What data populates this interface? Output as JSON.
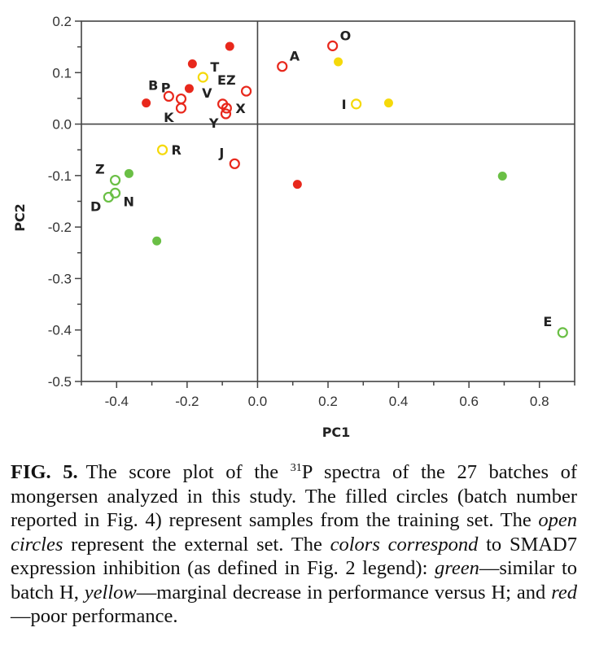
{
  "chart_data": {
    "type": "scatter",
    "title": "",
    "xlabel": "PC1",
    "ylabel": "PC2",
    "xlim": [
      -0.5,
      0.9
    ],
    "ylim": [
      -0.5,
      0.2
    ],
    "xticks": [
      -0.4,
      -0.2,
      0.0,
      0.2,
      0.4,
      0.6,
      0.8
    ],
    "xtick_labels": [
      "-0.4",
      "-0.2",
      "0.0",
      "0.2",
      "0.4",
      "0.6",
      "0.8"
    ],
    "xminor": [
      -0.5,
      -0.3,
      -0.1,
      0.1,
      0.3,
      0.5,
      0.7,
      0.9
    ],
    "yticks": [
      0.2,
      0.1,
      0.0,
      -0.1,
      -0.2,
      -0.3,
      -0.4,
      -0.5
    ],
    "ytick_labels": [
      "0.2",
      "0.1",
      "0.0",
      "-0.1",
      "-0.2",
      "-0.3",
      "-0.4",
      "-0.5"
    ],
    "yminor": [
      0.15,
      0.05,
      -0.05,
      -0.15,
      -0.25,
      -0.35,
      -0.45
    ],
    "zero_lines": true,
    "grid": false,
    "legend": "none",
    "colors": {
      "green": "#6abf45",
      "yellow": "#f5d90a",
      "red": "#e8281c"
    },
    "points": [
      {
        "label": "",
        "x": -0.316,
        "y": 0.041,
        "color": "red",
        "filled": true
      },
      {
        "label": "B",
        "x": -0.252,
        "y": 0.054,
        "color": "red",
        "filled": false,
        "label_pos": "upper-left"
      },
      {
        "label": "P",
        "x": -0.217,
        "y": 0.049,
        "color": "red",
        "filled": false,
        "label_pos": "upper-left"
      },
      {
        "label": "K",
        "x": -0.217,
        "y": 0.031,
        "color": "red",
        "filled": false,
        "label_pos": "lower-left"
      },
      {
        "label": "",
        "x": -0.194,
        "y": 0.069,
        "color": "red",
        "filled": true
      },
      {
        "label": "",
        "x": -0.185,
        "y": 0.117,
        "color": "red",
        "filled": true
      },
      {
        "label": "T",
        "x": -0.155,
        "y": 0.091,
        "color": "yellow",
        "filled": false,
        "label_pos": "upper-right"
      },
      {
        "label": "",
        "x": -0.079,
        "y": 0.151,
        "color": "red",
        "filled": true
      },
      {
        "label": "EZ",
        "x": -0.032,
        "y": 0.064,
        "color": "red",
        "filled": false,
        "label_pos": "upper-left"
      },
      {
        "label": "V",
        "x": -0.099,
        "y": 0.039,
        "color": "red",
        "filled": false,
        "label_pos": "upper-left"
      },
      {
        "label": "X",
        "x": -0.088,
        "y": 0.031,
        "color": "red",
        "filled": false,
        "label_pos": "right"
      },
      {
        "label": "Y",
        "x": -0.09,
        "y": 0.02,
        "color": "red",
        "filled": false,
        "label_pos": "lower-left"
      },
      {
        "label": "A",
        "x": 0.07,
        "y": 0.112,
        "color": "red",
        "filled": false,
        "label_pos": "upper-right"
      },
      {
        "label": "O",
        "x": 0.213,
        "y": 0.152,
        "color": "red",
        "filled": false,
        "label_pos": "upper-right"
      },
      {
        "label": "",
        "x": 0.229,
        "y": 0.121,
        "color": "yellow",
        "filled": true
      },
      {
        "label": "I",
        "x": 0.28,
        "y": 0.039,
        "color": "yellow",
        "filled": false,
        "label_pos": "left"
      },
      {
        "label": "",
        "x": 0.372,
        "y": 0.041,
        "color": "yellow",
        "filled": true
      },
      {
        "label": "R",
        "x": -0.27,
        "y": -0.05,
        "color": "yellow",
        "filled": false,
        "label_pos": "right"
      },
      {
        "label": "J",
        "x": -0.065,
        "y": -0.077,
        "color": "red",
        "filled": false,
        "label_pos": "upper-left"
      },
      {
        "label": "Z",
        "x": -0.404,
        "y": -0.109,
        "color": "green",
        "filled": false,
        "label_pos": "upper-left"
      },
      {
        "label": "",
        "x": -0.365,
        "y": -0.096,
        "color": "green",
        "filled": true
      },
      {
        "label": "N",
        "x": -0.404,
        "y": -0.134,
        "color": "green",
        "filled": false,
        "label_pos": "lower-right"
      },
      {
        "label": "D",
        "x": -0.423,
        "y": -0.142,
        "color": "green",
        "filled": false,
        "label_pos": "lower-left"
      },
      {
        "label": "",
        "x": -0.286,
        "y": -0.227,
        "color": "green",
        "filled": true
      },
      {
        "label": "",
        "x": 0.113,
        "y": -0.117,
        "color": "red",
        "filled": true
      },
      {
        "label": "",
        "x": 0.695,
        "y": -0.101,
        "color": "green",
        "filled": true
      },
      {
        "label": "E",
        "x": 0.866,
        "y": -0.405,
        "color": "green",
        "filled": false,
        "label_pos": "upper-left"
      }
    ]
  },
  "caption": {
    "fig_label": "FIG. 5.",
    "text_1": "The score plot of the ",
    "superscript": "31",
    "text_2": "P spectra of the 27 batches of mongersen analyzed in this study. The filled circles (batch number reported in Fig. 4) represent samples from the training set. The ",
    "italic_1": "open circles",
    "text_3": " represent the external set. The ",
    "italic_2": "colors correspond",
    "text_4": " to SMAD7 expression inhibition (as defined in Fig. 2 legend): ",
    "italic_3": "green",
    "text_5": "—similar to batch H, ",
    "italic_4": "yellow",
    "text_6": "—marginal decrease in performance versus H; and ",
    "italic_5": "red",
    "text_7": "—poor performance."
  }
}
